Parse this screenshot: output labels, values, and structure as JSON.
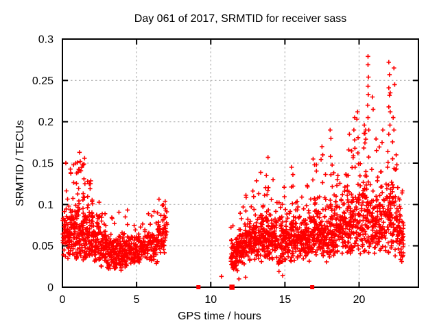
{
  "figure": {
    "background": "#ffffff"
  },
  "chart_data": {
    "type": "scatter",
    "title": "Day 061 of 2017, SRMTID for receiver sass",
    "xlabel": "GPS time / hours",
    "ylabel": "SRMTID / TECUs",
    "xlim": [
      0,
      24
    ],
    "ylim": [
      0,
      0.3
    ],
    "xticks": [
      0,
      5,
      10,
      15,
      20
    ],
    "xtick_labels": [
      "0",
      "5",
      "10",
      "15",
      "20"
    ],
    "yticks": [
      0,
      0.05,
      0.1,
      0.15,
      0.2,
      0.25,
      0.3
    ],
    "ytick_labels": [
      "0",
      "0.05",
      "0.1",
      "0.15",
      "0.2",
      "0.25",
      "0.3"
    ],
    "grid": true,
    "legend": "none",
    "border_color": "#000000",
    "grid_color": "#b0b0b0",
    "marker": {
      "shape": "plus",
      "color": "#ff0000",
      "size": 6.5,
      "stroke_width": 1.6
    },
    "seed": 61,
    "bands_format": [
      "x_start_hours",
      "x_end_hours",
      "count",
      "y_band_low_TECUs",
      "y_band_high_TECUs",
      "y_tail_max_TECUs",
      "tail_count"
    ],
    "bands": [
      [
        0.02,
        0.5,
        60,
        0.03,
        0.105,
        0.125,
        2
      ],
      [
        0.5,
        1.0,
        65,
        0.03,
        0.115,
        0.15,
        6
      ],
      [
        1.0,
        1.5,
        70,
        0.03,
        0.125,
        0.158,
        8
      ],
      [
        1.5,
        2.0,
        65,
        0.03,
        0.115,
        0.132,
        5
      ],
      [
        2.0,
        2.5,
        65,
        0.028,
        0.1,
        0.112,
        3
      ],
      [
        2.5,
        3.0,
        60,
        0.024,
        0.085,
        0.1,
        2
      ],
      [
        3.0,
        3.5,
        58,
        0.02,
        0.075,
        0.09,
        2
      ],
      [
        3.5,
        4.0,
        55,
        0.02,
        0.07,
        0.093,
        2
      ],
      [
        4.0,
        4.5,
        55,
        0.022,
        0.072,
        0.095,
        3
      ],
      [
        4.5,
        5.0,
        52,
        0.025,
        0.072,
        0.082,
        1
      ],
      [
        5.0,
        5.5,
        50,
        0.028,
        0.075,
        0.085,
        1
      ],
      [
        5.5,
        6.0,
        46,
        0.03,
        0.08,
        0.092,
        1
      ],
      [
        6.0,
        6.4,
        34,
        0.028,
        0.085,
        0.1,
        2
      ],
      [
        6.4,
        7.1,
        62,
        0.04,
        0.103,
        0.108,
        2
      ],
      [
        11.35,
        11.8,
        58,
        0.018,
        0.065,
        0.08,
        2
      ],
      [
        11.8,
        12.3,
        60,
        0.025,
        0.08,
        0.1,
        3
      ],
      [
        12.3,
        12.8,
        60,
        0.03,
        0.09,
        0.12,
        4
      ],
      [
        12.8,
        13.3,
        65,
        0.03,
        0.1,
        0.135,
        5
      ],
      [
        13.3,
        13.8,
        65,
        0.03,
        0.105,
        0.14,
        4
      ],
      [
        13.8,
        14.3,
        62,
        0.03,
        0.1,
        0.135,
        3
      ],
      [
        14.3,
        14.8,
        60,
        0.025,
        0.095,
        0.125,
        3
      ],
      [
        14.8,
        15.3,
        60,
        0.03,
        0.1,
        0.13,
        3
      ],
      [
        15.3,
        15.8,
        60,
        0.03,
        0.11,
        0.138,
        3
      ],
      [
        15.8,
        16.3,
        60,
        0.03,
        0.1,
        0.128,
        2
      ],
      [
        16.3,
        16.8,
        60,
        0.03,
        0.11,
        0.14,
        2
      ],
      [
        16.8,
        17.3,
        60,
        0.035,
        0.115,
        0.15,
        3
      ],
      [
        17.3,
        17.8,
        60,
        0.035,
        0.12,
        0.168,
        3
      ],
      [
        17.8,
        18.3,
        60,
        0.03,
        0.115,
        0.155,
        3
      ],
      [
        18.3,
        18.8,
        60,
        0.04,
        0.12,
        0.138,
        3
      ],
      [
        18.8,
        19.3,
        60,
        0.04,
        0.125,
        0.15,
        3
      ],
      [
        19.3,
        19.8,
        60,
        0.04,
        0.13,
        0.165,
        4
      ],
      [
        19.8,
        20.3,
        60,
        0.04,
        0.14,
        0.185,
        4
      ],
      [
        20.3,
        20.8,
        60,
        0.04,
        0.15,
        0.2,
        5
      ],
      [
        20.8,
        21.3,
        60,
        0.04,
        0.13,
        0.185,
        4
      ],
      [
        21.3,
        21.8,
        55,
        0.04,
        0.13,
        0.17,
        3
      ],
      [
        21.8,
        22.3,
        55,
        0.04,
        0.14,
        0.18,
        5
      ],
      [
        22.3,
        22.8,
        55,
        0.035,
        0.13,
        0.155,
        3
      ],
      [
        22.8,
        23.0,
        28,
        0.03,
        0.105,
        0.12,
        2
      ]
    ],
    "feature_points": [
      [
        0.23,
        0.15
      ],
      [
        0.75,
        0.148
      ],
      [
        0.9,
        0.15
      ],
      [
        1.05,
        0.139
      ],
      [
        1.15,
        0.163
      ],
      [
        1.2,
        0.152
      ],
      [
        1.4,
        0.148
      ],
      [
        1.45,
        0.131
      ],
      [
        1.7,
        0.128
      ],
      [
        13.86,
        0.157
      ],
      [
        13.75,
        0.135
      ],
      [
        14.2,
        0.13
      ],
      [
        15.45,
        0.145
      ],
      [
        16.9,
        0.155
      ],
      [
        17.0,
        0.148
      ],
      [
        17.5,
        0.17
      ],
      [
        17.55,
        0.16
      ],
      [
        18.05,
        0.19
      ],
      [
        18.1,
        0.18
      ],
      [
        18.07,
        0.158
      ],
      [
        18.1,
        0.136
      ],
      [
        18.5,
        0.123
      ],
      [
        18.45,
        0.11
      ],
      [
        19.35,
        0.185
      ],
      [
        19.3,
        0.166
      ],
      [
        19.65,
        0.19
      ],
      [
        19.7,
        0.205
      ],
      [
        19.7,
        0.178
      ],
      [
        19.72,
        0.168
      ],
      [
        19.73,
        0.145
      ],
      [
        19.85,
        0.203
      ],
      [
        19.9,
        0.212
      ],
      [
        20.35,
        0.196
      ],
      [
        20.4,
        0.186
      ],
      [
        20.45,
        0.19
      ],
      [
        20.6,
        0.279
      ],
      [
        20.6,
        0.269
      ],
      [
        20.63,
        0.254
      ],
      [
        20.6,
        0.243
      ],
      [
        20.62,
        0.233
      ],
      [
        20.58,
        0.22
      ],
      [
        20.6,
        0.205
      ],
      [
        20.65,
        0.19
      ],
      [
        20.9,
        0.23
      ],
      [
        20.95,
        0.215
      ],
      [
        21.6,
        0.19
      ],
      [
        21.55,
        0.175
      ],
      [
        22.0,
        0.272
      ],
      [
        22.05,
        0.257
      ],
      [
        22.0,
        0.241
      ],
      [
        22.1,
        0.235
      ],
      [
        22.05,
        0.232
      ],
      [
        22.0,
        0.218
      ],
      [
        22.1,
        0.212
      ],
      [
        22.08,
        0.196
      ],
      [
        22.0,
        0.185
      ],
      [
        22.35,
        0.265
      ],
      [
        22.4,
        0.245
      ],
      [
        22.3,
        0.205
      ],
      [
        22.35,
        0.19
      ],
      [
        22.5,
        0.16
      ],
      [
        22.55,
        0.148
      ]
    ],
    "outlier_points": [
      [
        10.72,
        0.013
      ],
      [
        11.9,
        0.01
      ],
      [
        12.35,
        0.012
      ],
      [
        14.6,
        0.019
      ],
      [
        14.85,
        0.014
      ]
    ],
    "axis_markers": {
      "shape": "square",
      "color": "#ff0000",
      "points": [
        {
          "x": 9.17,
          "size": 6
        },
        {
          "x": 11.43,
          "size": 7.5
        },
        {
          "x": 16.84,
          "size": 6
        }
      ]
    }
  }
}
